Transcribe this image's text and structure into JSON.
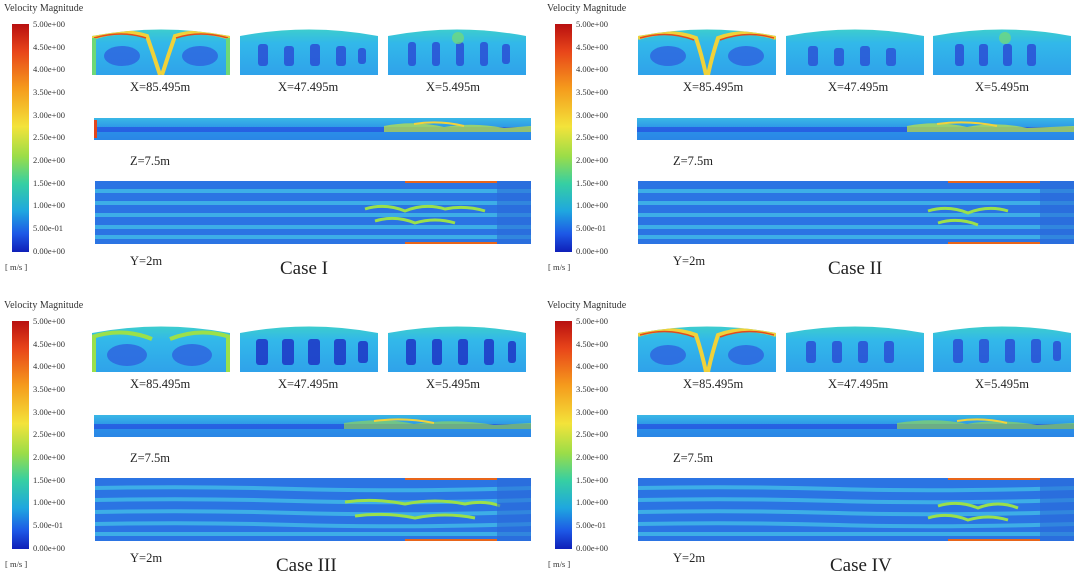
{
  "legend": {
    "title": "Velocity Magnitude",
    "unit": "[ m/s ]",
    "ticks": [
      "5.00e+00",
      "4.50e+00",
      "4.00e+00",
      "3.50e+00",
      "3.00e+00",
      "2.50e+00",
      "2.00e+00",
      "1.50e+00",
      "1.00e+00",
      "5.00e-01",
      "0.00e+00"
    ],
    "colors": [
      "#0f1fb8",
      "#1d58e6",
      "#1fa7df",
      "#36cfa3",
      "#9bdd48",
      "#f3e33a",
      "#f59a1c",
      "#e8451a",
      "#b81010"
    ],
    "range": [
      0,
      5
    ]
  },
  "plane_labels": {
    "x_slices": [
      "X=85.495m",
      "X=47.495m",
      "X=5.495m"
    ],
    "z_plane": "Z=7.5m",
    "y_plane": "Y=2m"
  },
  "cases": [
    {
      "title": "Case I"
    },
    {
      "title": "Case II"
    },
    {
      "title": "Case III"
    },
    {
      "title": "Case IV"
    }
  ]
}
